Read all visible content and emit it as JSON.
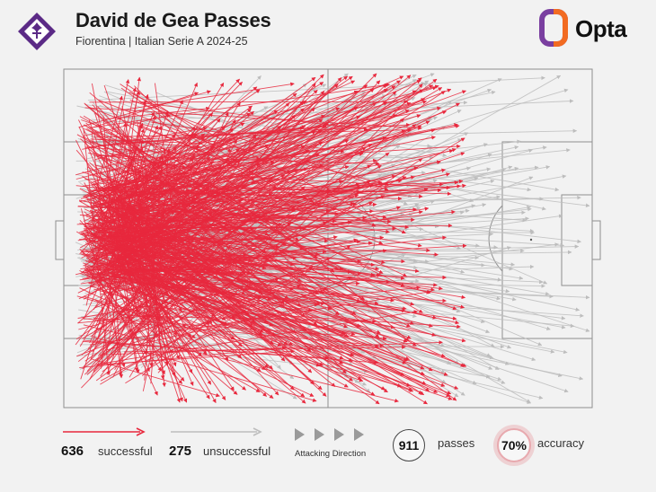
{
  "header": {
    "title": "David de Gea Passes",
    "subtitle": "Fiorentina | Italian Serie A 2024-25",
    "brand_name": "Opta"
  },
  "chart_data": {
    "type": "pass_map",
    "title": "David de Gea Passes",
    "subtitle": "Fiorentina | Italian Serie A 2024-25",
    "attacking_direction": "left-to-right",
    "series": [
      {
        "name": "successful",
        "count": 636,
        "color": "#e8283d"
      },
      {
        "name": "unsuccessful",
        "count": 275,
        "color": "#bdbdbd"
      }
    ],
    "total_passes": 911,
    "accuracy_percent": 70
  },
  "legend": {
    "successful_value": "636",
    "successful_label": "successful",
    "unsuccessful_value": "275",
    "unsuccessful_label": "unsuccessful",
    "direction_label": "Attacking Direction",
    "passes_value": "911",
    "passes_label": "passes",
    "accuracy_value": "70%",
    "accuracy_label": "accuracy"
  },
  "colors": {
    "successful": "#e8283d",
    "unsuccessful": "#bdbdbd",
    "pitch_lines": "#8f8f8f",
    "crest": "#5b2a86",
    "brand_orange": "#f26b21",
    "brand_purple": "#7a3fa0"
  },
  "icons": [
    "fiorentina-crest-icon",
    "opta-logo-icon",
    "attacking-direction-arrow-icon"
  ]
}
